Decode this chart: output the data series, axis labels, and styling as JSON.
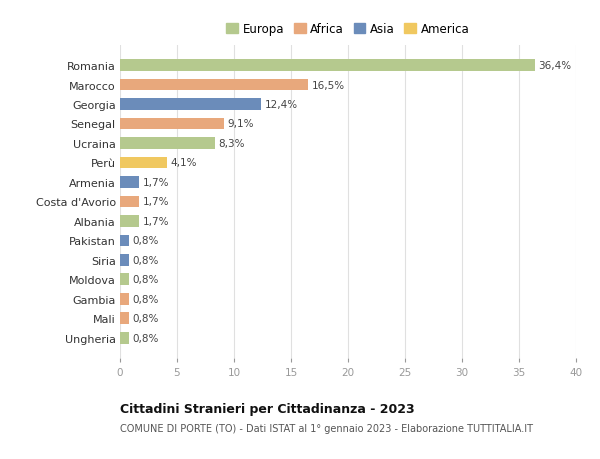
{
  "countries": [
    "Romania",
    "Marocco",
    "Georgia",
    "Senegal",
    "Ucraina",
    "Perù",
    "Armenia",
    "Costa d'Avorio",
    "Albania",
    "Pakistan",
    "Siria",
    "Moldova",
    "Gambia",
    "Mali",
    "Ungheria"
  ],
  "values": [
    36.4,
    16.5,
    12.4,
    9.1,
    8.3,
    4.1,
    1.7,
    1.7,
    1.7,
    0.8,
    0.8,
    0.8,
    0.8,
    0.8,
    0.8
  ],
  "labels": [
    "36,4%",
    "16,5%",
    "12,4%",
    "9,1%",
    "8,3%",
    "4,1%",
    "1,7%",
    "1,7%",
    "1,7%",
    "0,8%",
    "0,8%",
    "0,8%",
    "0,8%",
    "0,8%",
    "0,8%"
  ],
  "continents": [
    "Europa",
    "Africa",
    "Asia",
    "Africa",
    "Europa",
    "America",
    "Asia",
    "Africa",
    "Europa",
    "Asia",
    "Asia",
    "Europa",
    "Africa",
    "Africa",
    "Europa"
  ],
  "colors": {
    "Europa": "#b5c98e",
    "Africa": "#e8a87c",
    "Asia": "#6b8cba",
    "America": "#f0c860"
  },
  "legend_order": [
    "Europa",
    "Africa",
    "Asia",
    "America"
  ],
  "title": "Cittadini Stranieri per Cittadinanza - 2023",
  "subtitle": "COMUNE DI PORTE (TO) - Dati ISTAT al 1° gennaio 2023 - Elaborazione TUTTITALIA.IT",
  "xlim": [
    0,
    40
  ],
  "xticks": [
    0,
    5,
    10,
    15,
    20,
    25,
    30,
    35,
    40
  ],
  "background_color": "#ffffff",
  "grid_color": "#e0e0e0"
}
